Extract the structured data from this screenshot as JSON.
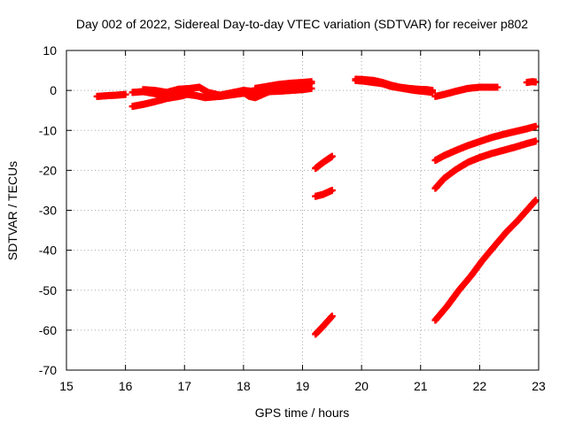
{
  "chart_data": {
    "type": "scatter",
    "title": "Day 002 of 2022, Sidereal Day-to-day VTEC variation (SDTVAR) for receiver p802",
    "xlabel": "GPS time / hours",
    "ylabel": "SDTVAR / TECUs",
    "xlim": [
      15,
      23
    ],
    "ylim": [
      -70,
      10
    ],
    "x_ticks": [
      "15",
      "16",
      "17",
      "18",
      "19",
      "20",
      "21",
      "22",
      "23"
    ],
    "y_ticks": [
      "10",
      "0",
      "-10",
      "-20",
      "-30",
      "-40",
      "-50",
      "-60",
      "-70"
    ],
    "grid": true,
    "legend": "none",
    "marker": "plus",
    "color": "#ff0000",
    "series": [
      {
        "x": [
          15.52,
          15.7,
          15.85,
          16.0
        ],
        "y": [
          -1.5,
          -1.3,
          -1.2,
          -1.0
        ]
      },
      {
        "x": [
          16.12,
          16.3,
          16.5,
          16.7,
          16.9,
          17.05,
          17.2,
          17.35,
          17.5,
          17.65,
          17.85,
          18.0
        ],
        "y": [
          -0.5,
          -0.3,
          -0.8,
          -1.5,
          -1.2,
          -1.0,
          -1.3,
          -1.8,
          -1.6,
          -1.4,
          -1.0,
          -0.7
        ]
      },
      {
        "x": [
          16.12,
          16.3,
          16.5,
          16.7,
          16.9,
          17.0
        ],
        "y": [
          -4.0,
          -3.5,
          -2.8,
          -2.0,
          -1.5,
          -1.2
        ]
      },
      {
        "x": [
          16.3,
          16.5,
          16.7,
          16.9,
          17.1,
          17.25,
          17.4,
          17.6,
          17.8,
          18.0,
          18.2
        ],
        "y": [
          0.2,
          0.0,
          -0.5,
          0.3,
          0.5,
          0.8,
          -0.5,
          -1.2,
          -0.6,
          0.0,
          -0.3
        ]
      },
      {
        "x": [
          17.6,
          17.8,
          18.0,
          18.1,
          18.2,
          18.4,
          18.6,
          18.8,
          19.0,
          19.15
        ],
        "y": [
          -1.5,
          -1.0,
          -0.5,
          -1.5,
          -1.8,
          -0.5,
          0.5,
          1.0,
          1.5,
          1.8
        ]
      },
      {
        "x": [
          18.2,
          18.4,
          18.6,
          18.8,
          19.0,
          19.15
        ],
        "y": [
          0.5,
          1.0,
          1.5,
          1.8,
          2.0,
          2.2
        ]
      },
      {
        "x": [
          17.8,
          18.0,
          18.2,
          18.4,
          18.6,
          18.8,
          19.0,
          19.15
        ],
        "y": [
          -0.8,
          -0.6,
          -0.5,
          -0.3,
          -0.2,
          0.0,
          0.2,
          0.5
        ]
      },
      {
        "x": [
          19.22,
          19.35,
          19.5
        ],
        "y": [
          -19.5,
          -18.0,
          -16.5
        ]
      },
      {
        "x": [
          19.22,
          19.35,
          19.5
        ],
        "y": [
          -26.5,
          -26.0,
          -25.0
        ]
      },
      {
        "x": [
          19.22,
          19.35,
          19.5
        ],
        "y": [
          -61.0,
          -59.0,
          -56.5
        ]
      },
      {
        "x": [
          19.9,
          20.05,
          20.2,
          20.35,
          20.5,
          20.65,
          20.8,
          20.95,
          21.1,
          21.2
        ],
        "y": [
          2.8,
          2.7,
          2.5,
          2.0,
          1.3,
          0.8,
          0.5,
          0.3,
          0.2,
          0.0
        ]
      },
      {
        "x": [
          19.9,
          20.05,
          20.2,
          20.35,
          20.5,
          20.7,
          20.9,
          21.1,
          21.2
        ],
        "y": [
          2.5,
          2.3,
          2.0,
          1.7,
          1.0,
          0.5,
          0.0,
          -0.3,
          -0.5
        ]
      },
      {
        "x": [
          21.25,
          21.4,
          21.6,
          21.8,
          22.0,
          22.15,
          22.3
        ],
        "y": [
          -1.5,
          -1.0,
          -0.2,
          0.5,
          0.8,
          0.8,
          0.8
        ]
      },
      {
        "x": [
          22.8,
          22.9,
          22.95
        ],
        "y": [
          2.0,
          2.2,
          2.1
        ]
      },
      {
        "x": [
          21.25,
          21.4,
          21.6,
          21.8,
          22.0,
          22.2,
          22.4,
          22.6,
          22.8,
          22.95
        ],
        "y": [
          -17.5,
          -16.3,
          -15.0,
          -13.8,
          -12.8,
          -11.8,
          -11.0,
          -10.3,
          -9.6,
          -9.0
        ]
      },
      {
        "x": [
          21.25,
          21.4,
          21.6,
          21.8,
          22.0,
          22.2,
          22.4,
          22.6,
          22.8,
          22.95
        ],
        "y": [
          -24.5,
          -22.0,
          -19.8,
          -18.0,
          -16.8,
          -15.8,
          -15.0,
          -14.2,
          -13.3,
          -12.7
        ]
      },
      {
        "x": [
          21.25,
          21.45,
          21.65,
          21.85,
          22.05,
          22.25,
          22.45,
          22.65,
          22.8,
          22.95
        ],
        "y": [
          -57.5,
          -54.0,
          -50.0,
          -46.5,
          -42.5,
          -39.0,
          -35.5,
          -32.5,
          -30.0,
          -27.5
        ]
      }
    ]
  }
}
